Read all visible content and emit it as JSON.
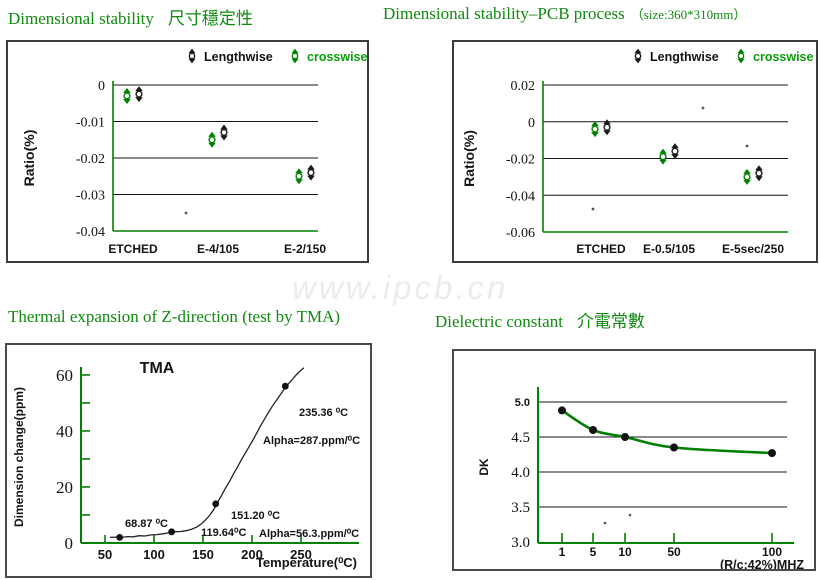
{
  "page": {
    "watermark": "www.ipcb.cn"
  },
  "colors": {
    "title_green": "#118a11",
    "chart_green": "#008000",
    "crosswise_text_green": "#0a9e0a",
    "line_black": "#1a1a1a"
  },
  "sections": {
    "dim_stability": {
      "en": "Dimensional stability",
      "zh": "尺寸穩定性"
    },
    "dim_stability_pcb": {
      "en": "Dimensional stability–PCB process",
      "size": "（size:360*310mm）"
    },
    "thermal": {
      "title": "Thermal expansion of Z-direction (test by TMA)"
    },
    "dielectric": {
      "en": "Dielectric constant",
      "zh": "介電常數"
    }
  },
  "chart_data": [
    {
      "id": "dimensional-stability",
      "type": "scatter",
      "title": "Dimensional stability 尺寸穩定性",
      "ylabel": "Ratio(%)",
      "yticks": [
        "0",
        "-0.01",
        "-0.02",
        "-0.03",
        "-0.04"
      ],
      "ylim": [
        -0.04,
        0
      ],
      "categories": [
        "ETCHED",
        "E-4/105",
        "E-2/150"
      ],
      "legend": [
        "Lengthwise",
        "crosswise"
      ],
      "series": [
        {
          "name": "Lengthwise",
          "color": "#161616",
          "values": [
            -0.0025,
            -0.013,
            -0.024
          ]
        },
        {
          "name": "crosswise",
          "color": "#008000",
          "values": [
            -0.003,
            -0.015,
            -0.025
          ]
        }
      ]
    },
    {
      "id": "dimensional-stability-pcb",
      "type": "scatter",
      "title": "Dimensional stability–PCB process （size:360*310mm）",
      "ylabel": "Ratio(%)",
      "yticks": [
        "0.02",
        "0",
        "-0.02",
        "-0.04",
        "-0.06"
      ],
      "ylim": [
        -0.06,
        0.02
      ],
      "categories": [
        "ETCHED",
        "E-0.5/105",
        "E-5sec/250"
      ],
      "legend": [
        "Lengthwise",
        "crosswise"
      ],
      "series": [
        {
          "name": "Lengthwise",
          "color": "#161616",
          "values": [
            -0.003,
            -0.016,
            -0.028
          ]
        },
        {
          "name": "crosswise",
          "color": "#008000",
          "values": [
            -0.004,
            -0.019,
            -0.03
          ]
        }
      ]
    },
    {
      "id": "tma",
      "type": "line",
      "title": "TMA",
      "xlabel": "Temperature(⁰C)",
      "ylabel": "Dimension change(ppm)",
      "xticks": [
        "50",
        "100",
        "150",
        "200",
        "250"
      ],
      "yticks": [
        "0",
        "20",
        "40",
        "60"
      ],
      "xlim": [
        25,
        290
      ],
      "ylim": [
        0,
        65
      ],
      "curve": [
        [
          55,
          2
        ],
        [
          61,
          2.1
        ],
        [
          67,
          2
        ],
        [
          73,
          2.3
        ],
        [
          79,
          2.2
        ],
        [
          85,
          2.6
        ],
        [
          91,
          2.5
        ],
        [
          97,
          2.9
        ],
        [
          103,
          3
        ],
        [
          109,
          3.3
        ],
        [
          115,
          3.6
        ],
        [
          121,
          4
        ],
        [
          127,
          4.1
        ],
        [
          133,
          4.4
        ],
        [
          139,
          5
        ],
        [
          144,
          5.8
        ],
        [
          149,
          7
        ],
        [
          153,
          8.4
        ],
        [
          157,
          10
        ],
        [
          161,
          12
        ],
        [
          165,
          14.6
        ],
        [
          169,
          17
        ],
        [
          173,
          19.6
        ],
        [
          177,
          22
        ],
        [
          181,
          24.6
        ],
        [
          185,
          27
        ],
        [
          189,
          29.6
        ],
        [
          193,
          32
        ],
        [
          197,
          34.4
        ],
        [
          201,
          36.8
        ],
        [
          205,
          39.4
        ],
        [
          209,
          42
        ],
        [
          213,
          44.4
        ],
        [
          217,
          46.8
        ],
        [
          221,
          49
        ],
        [
          225,
          51
        ],
        [
          229,
          53
        ],
        [
          233,
          55
        ],
        [
          237,
          56.8
        ],
        [
          241,
          58.4
        ],
        [
          245,
          60
        ],
        [
          249,
          61.4
        ],
        [
          253,
          62.6
        ]
      ],
      "markers": [
        [
          65,
          2
        ],
        [
          118,
          4
        ],
        [
          163,
          14
        ],
        [
          234,
          56
        ]
      ],
      "annotations": [
        "68.87 ⁰C",
        "119.64⁰C",
        "151.20 ⁰C",
        "235.36 ⁰C",
        "Alpha=287.ppm/⁰C",
        "Alpha=56.3.ppm/⁰C"
      ]
    },
    {
      "id": "dielectric-constant",
      "type": "line",
      "title": "Dielectric constant 介電常數",
      "xlabel": "(R/c:42%)MHZ",
      "ylabel": "DK",
      "xticks": [
        "1",
        "5",
        "10",
        "50",
        "100"
      ],
      "yticks": [
        "5.0",
        "4.5",
        "4.0",
        "3.5",
        "3.0"
      ],
      "ylim": [
        3.0,
        5.0
      ],
      "x": [
        1,
        5,
        10,
        50,
        100
      ],
      "values": [
        4.88,
        4.6,
        4.5,
        4.35,
        4.27
      ]
    }
  ]
}
